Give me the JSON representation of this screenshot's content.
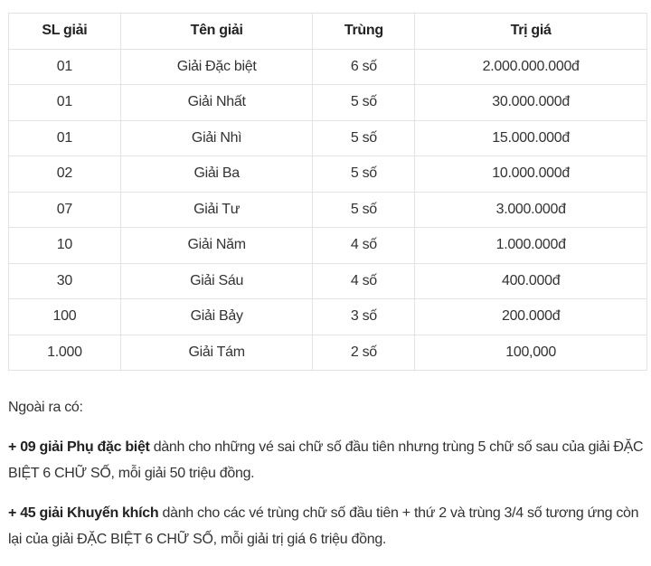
{
  "table": {
    "headers": [
      "SL giải",
      "Tên giải",
      "Trùng",
      "Trị giá"
    ],
    "rows": [
      [
        "01",
        "Giải Đặc biệt",
        "6 số",
        "2.000.000.000đ"
      ],
      [
        "01",
        "Giải Nhất",
        "5 số",
        "30.000.000đ"
      ],
      [
        "01",
        "Giải Nhì",
        "5 số",
        "15.000.000đ"
      ],
      [
        "02",
        "Giải Ba",
        "5 số",
        "10.000.000đ"
      ],
      [
        "07",
        "Giải Tư",
        "5 số",
        "3.000.000đ"
      ],
      [
        "10",
        "Giải Năm",
        "4 số",
        "1.000.000đ"
      ],
      [
        "30",
        "Giải Sáu",
        "4 số",
        "400.000đ"
      ],
      [
        "100",
        "Giải Bảy",
        "3 số",
        "200.000đ"
      ],
      [
        "1.000",
        "Giải Tám",
        "2 số",
        "100,000"
      ]
    ]
  },
  "notes": {
    "intro": "Ngoài ra có:",
    "items": [
      {
        "bold": "+ 09 giải Phụ đặc biệt",
        "text": " dành cho những vé sai chữ số đầu tiên nhưng trùng 5 chữ số sau của giải ĐẶC BIỆT 6 CHỮ SỐ, mỗi giải 50 triệu đồng."
      },
      {
        "bold": "+ 45 giải Khuyến khích",
        "text": " dành cho các vé trùng chữ số đầu tiên + thứ 2 và trùng 3/4 số tương ứng còn lại của giải ĐẶC BIỆT 6 CHỮ SỐ, mỗi giải trị giá 6 triệu đồng."
      }
    ]
  }
}
